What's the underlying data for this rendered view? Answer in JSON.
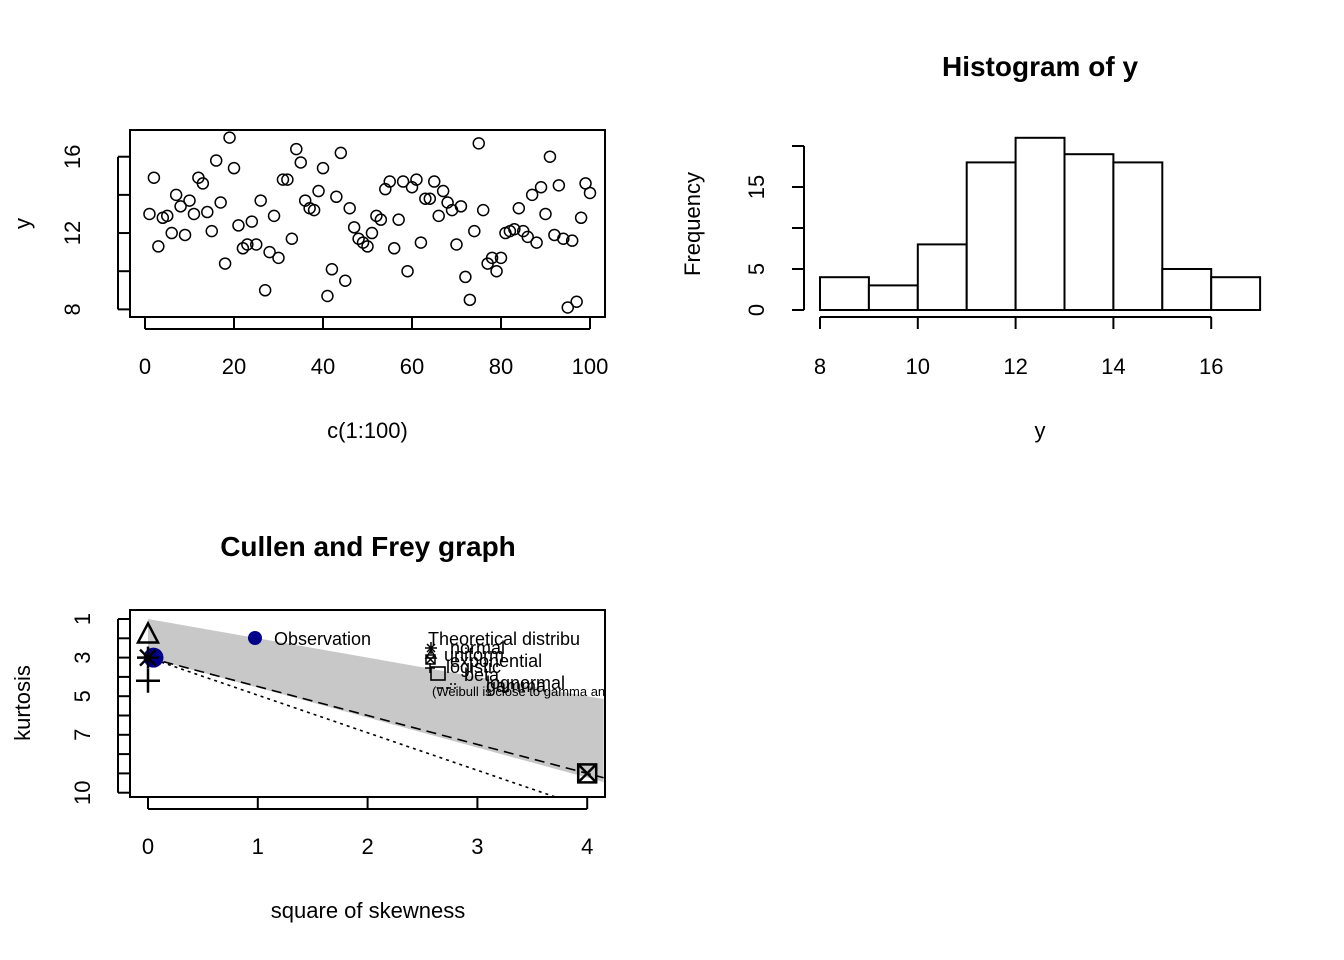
{
  "chart_data": [
    {
      "type": "scatter",
      "title": "",
      "xlabel": "c(1:100)",
      "ylabel": "y",
      "xlim": [
        0,
        100
      ],
      "ylim": [
        7.6,
        17.4
      ],
      "xticks": [
        "0",
        "20",
        "40",
        "60",
        "80",
        "100"
      ],
      "yticks": [
        "8",
        "12",
        "16"
      ],
      "y_minor_ticks": [
        8,
        10,
        12,
        14,
        16
      ],
      "marker": "open-circle",
      "x": [
        1,
        2,
        3,
        4,
        5,
        6,
        7,
        8,
        9,
        10,
        11,
        12,
        13,
        14,
        15,
        16,
        17,
        18,
        19,
        20,
        21,
        22,
        23,
        24,
        25,
        26,
        27,
        28,
        29,
        30,
        31,
        32,
        33,
        34,
        35,
        36,
        37,
        38,
        39,
        40,
        41,
        42,
        43,
        44,
        45,
        46,
        47,
        48,
        49,
        50,
        51,
        52,
        53,
        54,
        55,
        56,
        57,
        58,
        59,
        60,
        61,
        62,
        63,
        64,
        65,
        66,
        67,
        68,
        69,
        70,
        71,
        72,
        73,
        74,
        75,
        76,
        77,
        78,
        79,
        80,
        81,
        82,
        83,
        84,
        85,
        86,
        87,
        88,
        89,
        90,
        91,
        92,
        93,
        94,
        95,
        96,
        97,
        98,
        99,
        100
      ],
      "values": [
        13.0,
        14.9,
        11.3,
        12.8,
        12.9,
        12.0,
        14.0,
        13.4,
        11.9,
        13.7,
        13.0,
        14.9,
        14.6,
        13.1,
        12.1,
        15.8,
        13.6,
        10.4,
        17.0,
        15.4,
        12.4,
        11.2,
        11.4,
        12.6,
        11.4,
        13.7,
        9.0,
        11.0,
        12.9,
        10.7,
        14.8,
        14.8,
        11.7,
        16.4,
        15.7,
        13.7,
        13.3,
        13.2,
        14.2,
        15.4,
        8.7,
        10.1,
        13.9,
        16.2,
        9.5,
        13.3,
        12.3,
        11.7,
        11.5,
        11.3,
        12.0,
        12.9,
        12.7,
        14.3,
        14.7,
        11.2,
        12.7,
        14.7,
        10.0,
        14.4,
        14.8,
        11.5,
        13.8,
        13.8,
        14.7,
        12.9,
        14.2,
        13.6,
        13.2,
        11.4,
        13.4,
        9.7,
        8.5,
        12.1,
        16.7,
        13.2,
        10.4,
        10.7,
        10.0,
        10.7,
        12.0,
        12.1,
        12.2,
        13.3,
        12.1,
        11.8,
        14.0,
        11.5,
        14.4,
        13.0,
        16.0,
        11.9,
        14.5,
        11.7,
        8.1,
        11.6,
        8.4,
        12.8,
        14.6,
        14.1
      ]
    },
    {
      "type": "bar",
      "title": "Histogram of y",
      "xlabel": "y",
      "ylabel": "Frequency",
      "bin_edges": [
        8,
        9,
        10,
        11,
        12,
        13,
        14,
        15,
        16,
        17
      ],
      "values": [
        4,
        3,
        8,
        18,
        21,
        19,
        18,
        5,
        4
      ],
      "xticks": [
        "8",
        "10",
        "12",
        "14",
        "16"
      ],
      "yticks": [
        "0",
        "5",
        "15"
      ],
      "y_minor_ticks": [
        0,
        5,
        10,
        15,
        20
      ],
      "ylim": [
        0,
        21
      ]
    },
    {
      "type": "scatter",
      "title": "Cullen and Frey graph",
      "xlabel": "square of skewness",
      "ylabel": "kurtosis",
      "xlim": [
        -0.15,
        4.15
      ],
      "ylim_reversed": [
        0.9,
        10.3
      ],
      "xticks": [
        "0",
        "1",
        "2",
        "3",
        "4"
      ],
      "yticks": [
        "1",
        "3",
        "5",
        "7",
        "10"
      ],
      "y_minor_ticks": [
        1,
        2,
        3,
        4,
        5,
        6,
        7,
        8,
        9,
        10
      ],
      "beta_region_upper": [
        [
          0,
          1
        ],
        [
          4.15,
          5.15
        ]
      ],
      "beta_region_lower": [
        [
          0,
          3
        ],
        [
          4.15,
          9.45
        ]
      ],
      "gamma_line": [
        [
          0,
          3
        ],
        [
          4.15,
          9.225
        ]
      ],
      "lognormal_line": [
        [
          0,
          3
        ],
        [
          3.75,
          10.3
        ]
      ],
      "points": {
        "observation": [
          0.05,
          3.0
        ],
        "uniform": [
          0,
          1.8
        ],
        "normal": [
          0,
          3
        ],
        "logistic": [
          0,
          4.2
        ],
        "exponential": [
          4,
          9
        ],
        "beta_square": [
          4,
          9
        ]
      },
      "legend_left": {
        "label": "Observation",
        "color": "#00008B"
      },
      "legend_right": {
        "header": "Theoretical distribu",
        "entries": [
          "normal",
          "uniform",
          "exponential",
          "logistic",
          "beta",
          "lognormal",
          "gamma"
        ],
        "note": "(Weibull is close to gamma and lognormal)"
      },
      "colors": {
        "beta_region": "#C8C8C8",
        "observation": "#00008B"
      }
    }
  ]
}
